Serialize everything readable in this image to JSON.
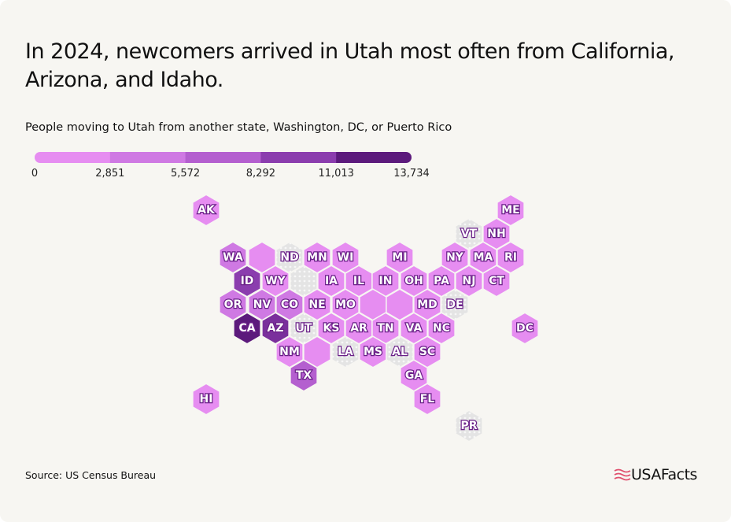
{
  "header": {
    "title": "In 2024, newcomers arrived in Utah most often from California, Arizona, and Idaho.",
    "subtitle": "People moving to Utah from another state, Washington, DC, or Puerto Rico"
  },
  "legend": {
    "colors": [
      "#e68df1",
      "#cf79e3",
      "#b45fcf",
      "#8b3dae",
      "#5c1a7c"
    ],
    "labels": [
      "0",
      "2,851",
      "5,572",
      "8,292",
      "11,013",
      "13,734"
    ]
  },
  "tiles": [
    {
      "label": "AK",
      "color": "#e68df1"
    },
    {
      "label": "ME",
      "color": "#e68df1"
    },
    {
      "label": "VT",
      "no_data": true
    },
    {
      "label": "NH",
      "color": "#e68df1"
    },
    {
      "label": "WA",
      "color": "#cf79e3"
    },
    {
      "color": "#e68df1"
    },
    {
      "label": "ND",
      "no_data": true
    },
    {
      "label": "MN",
      "color": "#e68df1"
    },
    {
      "label": "WI",
      "color": "#e68df1"
    },
    {
      "label": "MI",
      "color": "#e68df1"
    },
    {
      "label": "NY",
      "color": "#e68df1"
    },
    {
      "label": "MA",
      "color": "#e68df1"
    },
    {
      "label": "RI",
      "color": "#e68df1"
    },
    {
      "label": "ID",
      "color": "#8b3dae"
    },
    {
      "label": "WY",
      "color": "#e68df1"
    },
    {
      "no_data": true
    },
    {
      "label": "IA",
      "color": "#e68df1"
    },
    {
      "label": "IL",
      "color": "#e68df1"
    },
    {
      "label": "IN",
      "color": "#e68df1"
    },
    {
      "label": "OH",
      "color": "#e68df1"
    },
    {
      "label": "PA",
      "color": "#e68df1"
    },
    {
      "label": "NJ",
      "color": "#e68df1"
    },
    {
      "label": "CT",
      "color": "#e68df1"
    },
    {
      "label": "OR",
      "color": "#cf79e3"
    },
    {
      "label": "NV",
      "color": "#cf79e3"
    },
    {
      "label": "CO",
      "color": "#cf79e3"
    },
    {
      "label": "NE",
      "color": "#e68df1"
    },
    {
      "label": "MO",
      "color": "#e68df1"
    },
    {
      "color": "#e68df1"
    },
    {
      "color": "#e68df1"
    },
    {
      "label": "MD",
      "color": "#e68df1"
    },
    {
      "label": "DE",
      "no_data": true
    },
    {
      "label": "CA",
      "color": "#5c1a7c"
    },
    {
      "label": "AZ",
      "color": "#7a2f9c"
    },
    {
      "label": "UT",
      "no_data": true
    },
    {
      "label": "KS",
      "color": "#e68df1"
    },
    {
      "label": "AR",
      "color": "#e68df1"
    },
    {
      "label": "TN",
      "color": "#e68df1"
    },
    {
      "label": "VA",
      "color": "#e68df1"
    },
    {
      "label": "NC",
      "color": "#e68df1"
    },
    {
      "label": "DC",
      "color": "#e68df1"
    },
    {
      "label": "NM",
      "color": "#e68df1"
    },
    {
      "color": "#e68df1"
    },
    {
      "label": "LA",
      "no_data": true
    },
    {
      "label": "MS",
      "color": "#e68df1"
    },
    {
      "label": "AL",
      "no_data": true
    },
    {
      "label": "SC",
      "color": "#e68df1"
    },
    {
      "label": "TX",
      "color": "#b45fcf"
    },
    {
      "label": "GA",
      "color": "#e68df1"
    },
    {
      "label": "HI",
      "color": "#e68df1"
    },
    {
      "label": "FL",
      "color": "#e68df1"
    },
    {
      "label": "PR",
      "no_data": true
    }
  ],
  "footer": {
    "source": "Source: US Census Bureau",
    "logo": "USAFacts"
  }
}
